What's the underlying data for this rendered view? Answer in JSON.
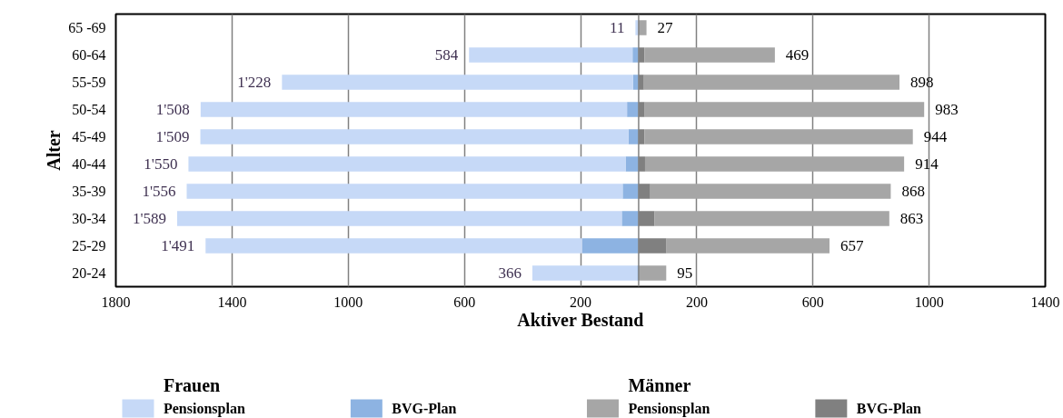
{
  "chart_data": {
    "type": "bar",
    "orientation": "horizontal",
    "stacked": true,
    "xlabel": "Aktiver Bestand",
    "ylabel": "Alter",
    "categories": [
      "65 -69",
      "60-64",
      "55-59",
      "50-54",
      "45-49",
      "40-44",
      "35-39",
      "30-34",
      "25-29",
      "20-24"
    ],
    "series": [
      {
        "name": "BVG-Plan",
        "color": "#8db3e2",
        "values": [
          0,
          -21,
          -19,
          -40,
          -35,
          -45,
          -55,
          -58,
          -195,
          -5
        ]
      },
      {
        "name": "Pensionsplan",
        "color": "#c6d9f7",
        "values": [
          -11,
          -563,
          -1209,
          -1468,
          -1474,
          -1505,
          -1501,
          -1531,
          -1296,
          -361
        ]
      },
      {
        "name": "BVG-Plan",
        "color": "#808080",
        "values": [
          0,
          20,
          18,
          21,
          20,
          22,
          40,
          55,
          96,
          0
        ]
      },
      {
        "name": "Pensionsplan",
        "color": "#a6a6a6",
        "values": [
          27,
          449,
          880,
          962,
          924,
          892,
          828,
          808,
          561,
          95
        ]
      }
    ],
    "totals": [
      [
        "11",
        "584",
        "1'228",
        "1'508",
        "1'509",
        "1'550",
        "1'556",
        "1'589",
        "1'491",
        "366"
      ],
      [
        "27",
        "469",
        "898",
        "983",
        "944",
        "914",
        "868",
        "863",
        "657",
        "95"
      ]
    ],
    "annotations": [
      "Frauen",
      "Männer"
    ],
    "xlim": [
      -1800,
      1400
    ],
    "xticks": [
      {
        "value": -1800,
        "label": "1800"
      },
      {
        "value": -1400,
        "label": "1400"
      },
      {
        "value": -1000,
        "label": "1000"
      },
      {
        "value": -600,
        "label": "600"
      },
      {
        "value": -200,
        "label": "200"
      },
      200,
      600,
      1000,
      1400
    ],
    "grid": "x",
    "legend": "bottom"
  }
}
